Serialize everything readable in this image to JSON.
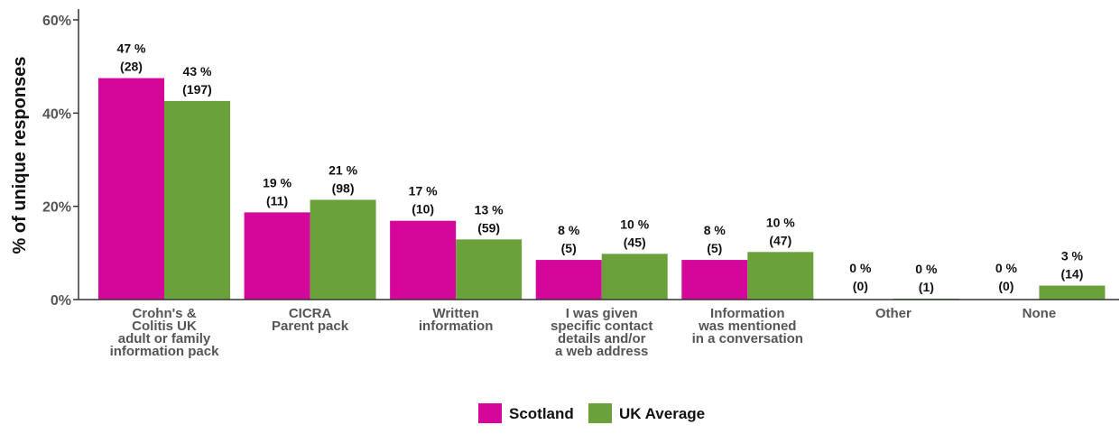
{
  "chart_data": {
    "type": "bar",
    "title": "",
    "xlabel": "",
    "ylabel": "% of unique responses",
    "ylim": [
      0,
      60
    ],
    "yticks": [
      "0%",
      "20%",
      "40%",
      "60%"
    ],
    "grid": false,
    "legend_position": "bottom-center",
    "categories": [
      [
        "Crohn's &",
        "Colitis UK",
        "adult or family",
        "information pack"
      ],
      [
        "CICRA",
        "Parent pack"
      ],
      [
        "Written",
        "information"
      ],
      [
        "I was given",
        "specific contact",
        "details and/or",
        "a web address"
      ],
      [
        "Information",
        "was mentioned",
        "in a conversation"
      ],
      [
        "Other"
      ],
      [
        "None"
      ]
    ],
    "series": [
      {
        "name": "Scotland",
        "color": "#d4079a",
        "values": [
          47.5,
          18.7,
          16.9,
          8.5,
          8.5,
          0,
          0
        ],
        "labels": [
          [
            "47 %",
            "(28)"
          ],
          [
            "19 %",
            "(11)"
          ],
          [
            "17 %",
            "(10)"
          ],
          [
            "8 %",
            "(5)"
          ],
          [
            "8 %",
            "(5)"
          ],
          [
            "0 %",
            "(0)"
          ],
          [
            "0 %",
            "(0)"
          ]
        ]
      },
      {
        "name": "UK Average",
        "color": "#6aa13a",
        "values": [
          42.6,
          21.4,
          12.9,
          9.8,
          10.2,
          0.2,
          3.0
        ],
        "labels": [
          [
            "43 %",
            "(197)"
          ],
          [
            "21 %",
            "(98)"
          ],
          [
            "13 %",
            "(59)"
          ],
          [
            "10 %",
            "(45)"
          ],
          [
            "10 %",
            "(47)"
          ],
          [
            "0 %",
            "(1)"
          ],
          [
            "3 %",
            "(14)"
          ]
        ]
      }
    ]
  }
}
